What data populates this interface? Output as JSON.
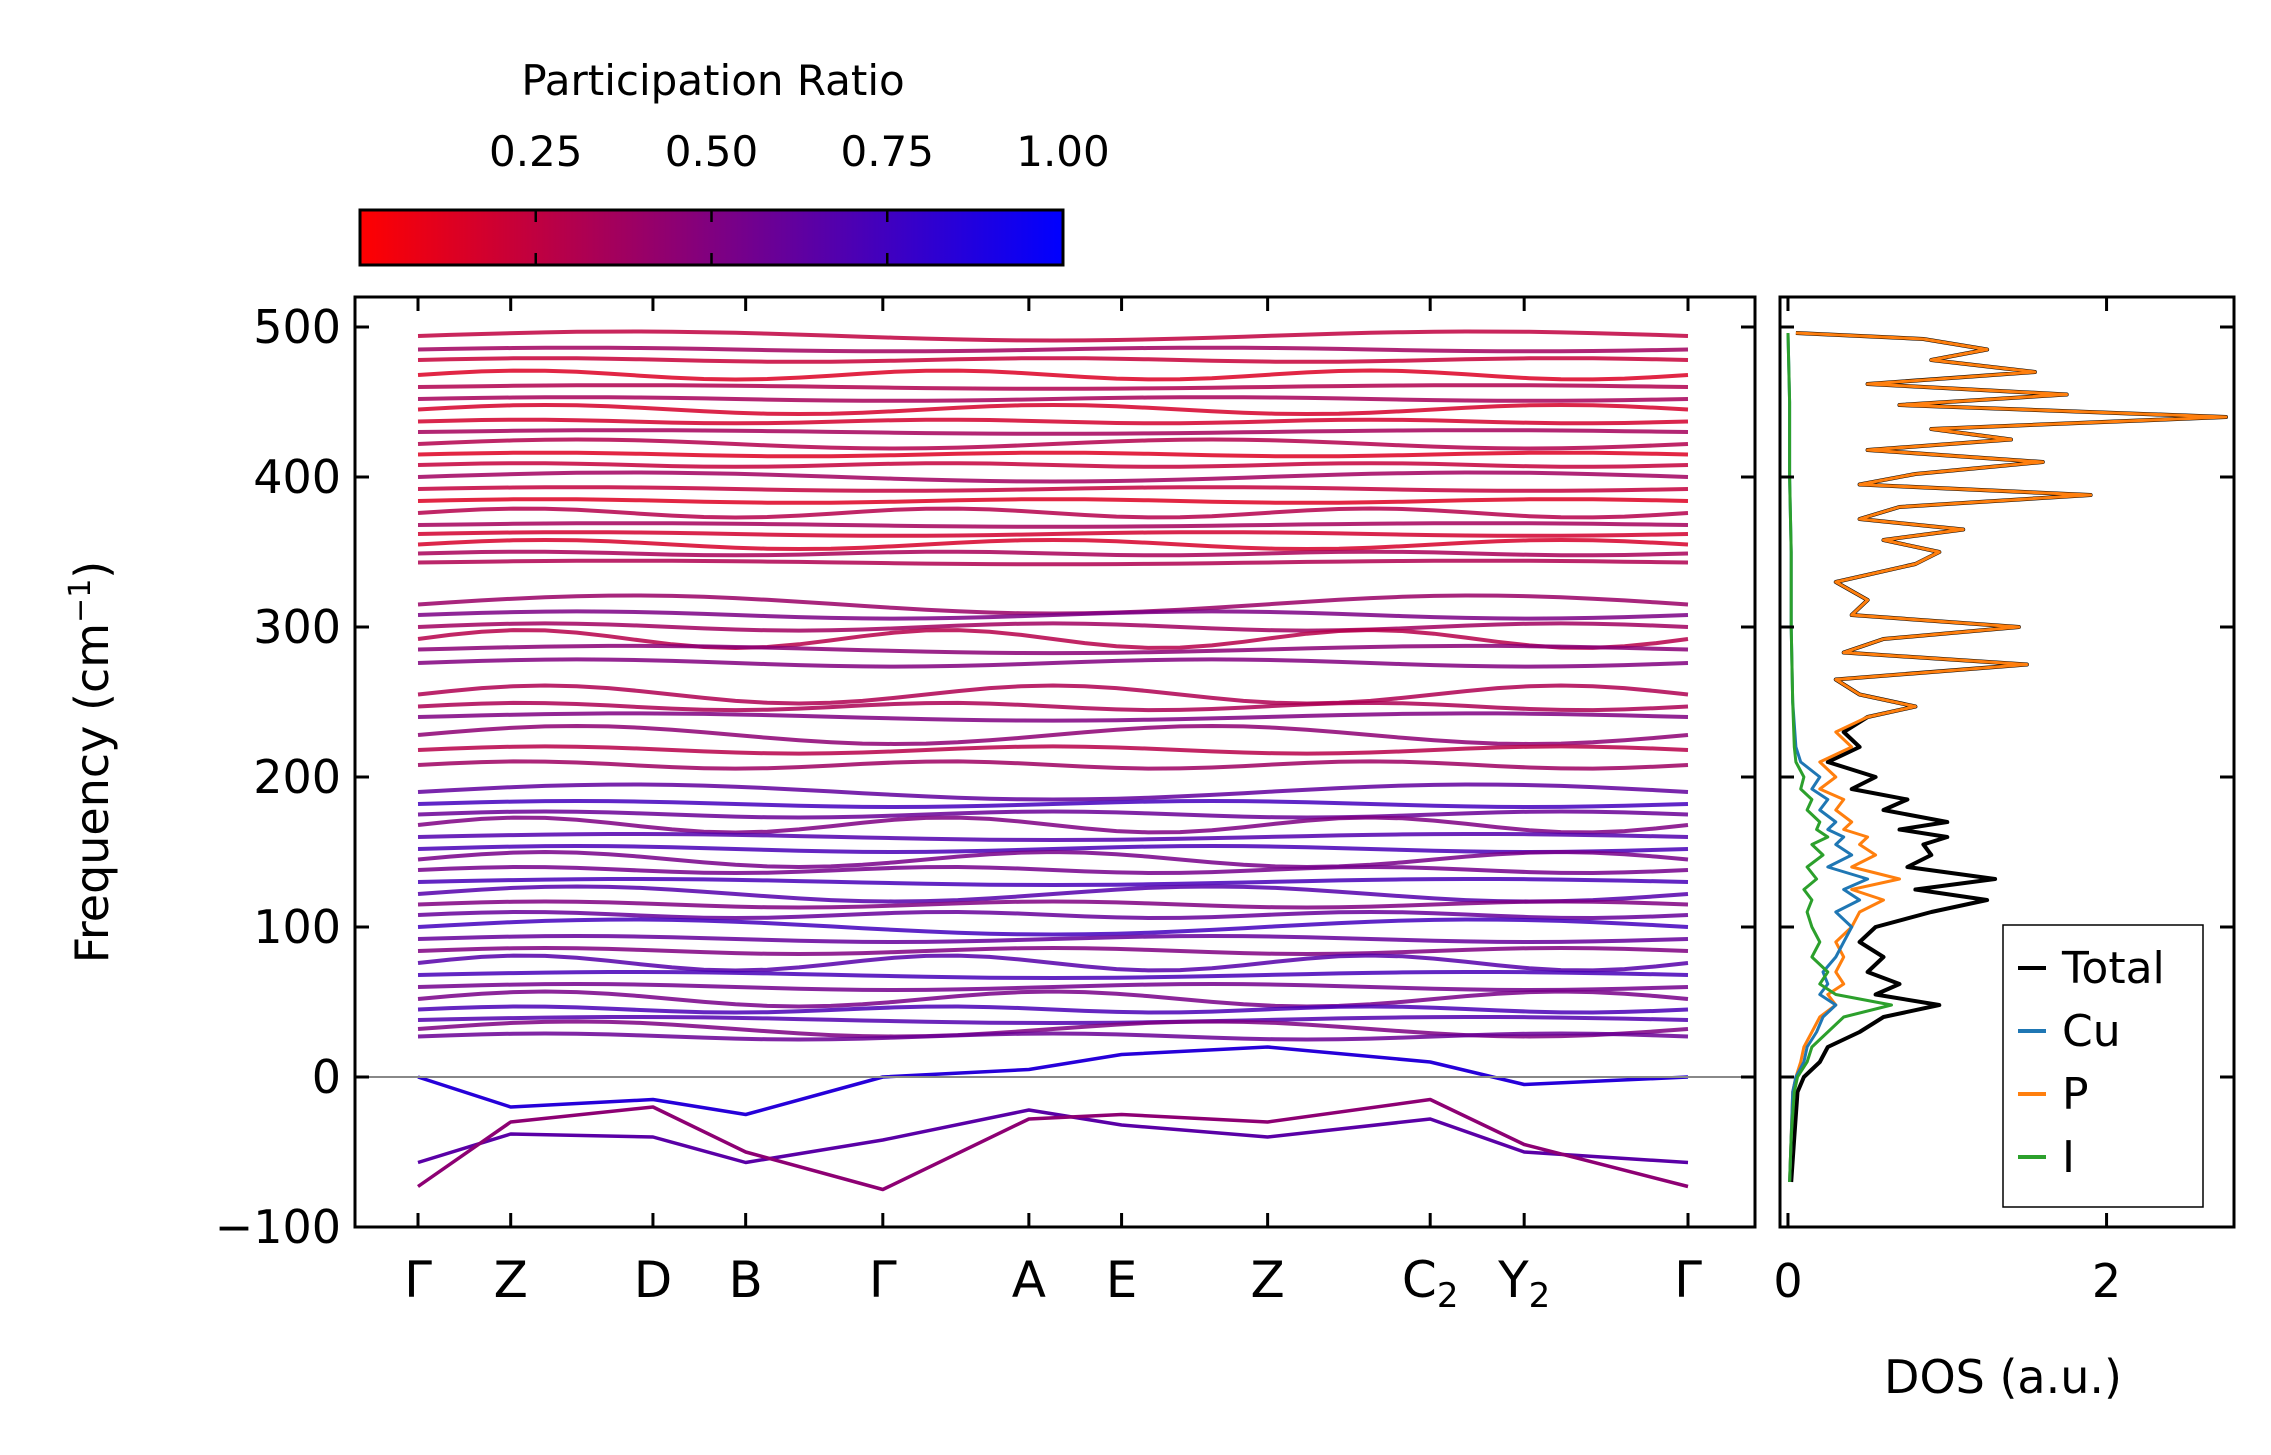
{
  "chart_data": [
    {
      "type": "line",
      "subtype": "phonon-band-structure",
      "ylabel": "Frequency (cm",
      "ylabel_sup": "−1",
      "ylabel_close": ")",
      "ylim": [
        -100,
        520
      ],
      "yticks": [
        500,
        400,
        300,
        200,
        100,
        0
      ],
      "ytick_labels": [
        "500",
        "400",
        "300",
        "200",
        "100",
        "0",
        "−100"
      ],
      "yticks_all": [
        500,
        400,
        300,
        200,
        100,
        0,
        -100
      ],
      "kpoint_positions": [
        0,
        0.073,
        0.185,
        0.258,
        0.366,
        0.481,
        0.554,
        0.669,
        0.797,
        0.871,
        1.0
      ],
      "kpath": [
        {
          "label": "Γ",
          "sub": ""
        },
        {
          "label": "Z",
          "sub": ""
        },
        {
          "label": "D",
          "sub": ""
        },
        {
          "label": "B",
          "sub": ""
        },
        {
          "label": "Γ",
          "sub": ""
        },
        {
          "label": "A",
          "sub": ""
        },
        {
          "label": "E",
          "sub": ""
        },
        {
          "label": "Z",
          "sub": ""
        },
        {
          "label": "C",
          "sub": "2"
        },
        {
          "label": "Y",
          "sub": "2"
        },
        {
          "label": "Γ",
          "sub": ""
        }
      ],
      "zero_line": 0,
      "flat_band_frequencies_high": [
        494,
        485,
        478,
        468,
        460,
        452,
        445,
        437,
        430,
        422,
        415,
        408,
        400,
        392,
        384,
        376,
        368,
        362,
        355,
        349,
        343
      ],
      "flat_band_frequencies_mid": [
        315,
        308,
        300,
        292,
        285,
        276,
        255,
        247,
        240,
        228,
        218,
        208
      ],
      "flat_band_frequencies_low": [
        190,
        182,
        175,
        168,
        160,
        152,
        145,
        138,
        130,
        122,
        115,
        108,
        100,
        92,
        84,
        76,
        68,
        60,
        52,
        45,
        38,
        32,
        27
      ],
      "acoustic_bands": [
        {
          "k": [
            0,
            0.073,
            0.185,
            0.258,
            0.366,
            0.481,
            0.554,
            0.669,
            0.797,
            0.871,
            1.0
          ],
          "f": [
            0,
            -20,
            -15,
            -25,
            0,
            5,
            15,
            20,
            10,
            -5,
            0
          ]
        },
        {
          "k": [
            0,
            0.073,
            0.185,
            0.258,
            0.366,
            0.481,
            0.554,
            0.669,
            0.797,
            0.871,
            1.0
          ],
          "f": [
            -57,
            -38,
            -40,
            -57,
            -42,
            -22,
            -32,
            -40,
            -28,
            -50,
            -57
          ]
        },
        {
          "k": [
            0,
            0.073,
            0.185,
            0.258,
            0.366,
            0.481,
            0.554,
            0.669,
            0.797,
            0.871,
            1.0
          ],
          "f": [
            -73,
            -30,
            -20,
            -50,
            -75,
            -28,
            -25,
            -30,
            -15,
            -45,
            -73
          ]
        }
      ],
      "colorbar": {
        "label": "Participation Ratio",
        "range": [
          0.0,
          1.0
        ],
        "ticks": [
          0.25,
          0.5,
          0.75,
          1.0
        ],
        "tick_labels": [
          "0.25",
          "0.50",
          "0.75",
          "1.00"
        ],
        "color_low": "#ff0000",
        "color_mid": "#800080",
        "color_high": "#0000ff"
      }
    },
    {
      "type": "line",
      "subtype": "density-of-states",
      "xlabel": "DOS (a.u.)",
      "xlim": [
        -0.05,
        2.8
      ],
      "xticks": [
        0,
        2
      ],
      "xtick_labels": [
        "0",
        "2"
      ],
      "ylim": [
        -100,
        520
      ],
      "legend_placement": "lower-right",
      "series": [
        {
          "name": "Total",
          "color": "#000000",
          "freq": [
            -70,
            -40,
            -10,
            0,
            10,
            20,
            30,
            40,
            48,
            55,
            62,
            70,
            80,
            90,
            100,
            110,
            118,
            125,
            132,
            140,
            148,
            155,
            160,
            165,
            170,
            178,
            185,
            192,
            200,
            210,
            220,
            230,
            240,
            247,
            255,
            265,
            275,
            283,
            292,
            300,
            308,
            318,
            330,
            342,
            350,
            358,
            365,
            372,
            380,
            388,
            395,
            402,
            410,
            418,
            425,
            432,
            440,
            448,
            455,
            462,
            470,
            478,
            485,
            492,
            496
          ],
          "dos": [
            0.02,
            0.04,
            0.06,
            0.1,
            0.2,
            0.25,
            0.45,
            0.6,
            0.95,
            0.55,
            0.7,
            0.5,
            0.6,
            0.45,
            0.55,
            0.9,
            1.25,
            0.8,
            1.3,
            0.75,
            0.9,
            0.85,
            1.0,
            0.7,
            1.0,
            0.6,
            0.75,
            0.4,
            0.55,
            0.25,
            0.45,
            0.35,
            0.5,
            0.8,
            0.45,
            0.3,
            1.5,
            0.35,
            0.6,
            1.45,
            0.4,
            0.5,
            0.3,
            0.8,
            0.95,
            0.6,
            1.1,
            0.45,
            0.7,
            1.9,
            0.45,
            0.8,
            1.6,
            0.5,
            1.4,
            0.9,
            2.75,
            0.7,
            1.75,
            0.5,
            1.55,
            0.9,
            1.25,
            0.85,
            0.05
          ]
        },
        {
          "name": "Cu",
          "color": "#1f77b4",
          "freq": [
            -70,
            -40,
            -10,
            0,
            10,
            20,
            30,
            40,
            48,
            55,
            62,
            70,
            80,
            90,
            100,
            110,
            118,
            125,
            132,
            140,
            148,
            155,
            160,
            165,
            170,
            178,
            185,
            192,
            200,
            210,
            220,
            250,
            300,
            350,
            400,
            450,
            496
          ],
          "dos": [
            0.01,
            0.02,
            0.03,
            0.05,
            0.1,
            0.12,
            0.18,
            0.22,
            0.3,
            0.2,
            0.25,
            0.22,
            0.3,
            0.35,
            0.4,
            0.3,
            0.45,
            0.35,
            0.5,
            0.25,
            0.4,
            0.3,
            0.35,
            0.25,
            0.3,
            0.2,
            0.25,
            0.15,
            0.2,
            0.08,
            0.05,
            0.03,
            0.02,
            0.02,
            0.01,
            0.01,
            0.0
          ]
        },
        {
          "name": "P",
          "color": "#ff7f0e",
          "freq": [
            -70,
            -40,
            -10,
            0,
            10,
            20,
            30,
            40,
            48,
            55,
            62,
            70,
            80,
            90,
            100,
            110,
            118,
            125,
            132,
            140,
            148,
            155,
            160,
            165,
            170,
            178,
            185,
            192,
            200,
            210,
            220,
            230,
            240,
            247,
            255,
            265,
            275,
            283,
            292,
            300,
            308,
            318,
            330,
            342,
            350,
            358,
            365,
            372,
            380,
            388,
            395,
            402,
            410,
            418,
            425,
            432,
            440,
            448,
            455,
            462,
            470,
            478,
            485,
            492,
            496
          ],
          "dos": [
            0.01,
            0.02,
            0.03,
            0.05,
            0.08,
            0.1,
            0.15,
            0.2,
            0.3,
            0.25,
            0.35,
            0.3,
            0.35,
            0.3,
            0.4,
            0.45,
            0.6,
            0.4,
            0.7,
            0.4,
            0.55,
            0.45,
            0.5,
            0.35,
            0.4,
            0.3,
            0.35,
            0.2,
            0.3,
            0.2,
            0.4,
            0.3,
            0.5,
            0.8,
            0.45,
            0.3,
            1.5,
            0.35,
            0.6,
            1.45,
            0.4,
            0.5,
            0.3,
            0.8,
            0.95,
            0.6,
            1.1,
            0.45,
            0.7,
            1.9,
            0.45,
            0.8,
            1.6,
            0.5,
            1.4,
            0.9,
            2.75,
            0.7,
            1.75,
            0.5,
            1.55,
            0.9,
            1.25,
            0.85,
            0.05
          ]
        },
        {
          "name": "I",
          "color": "#2ca02c",
          "freq": [
            -70,
            -40,
            -10,
            0,
            10,
            20,
            30,
            40,
            48,
            55,
            62,
            70,
            80,
            90,
            100,
            110,
            118,
            125,
            132,
            140,
            148,
            155,
            160,
            165,
            170,
            178,
            185,
            192,
            200,
            210,
            220,
            250,
            300,
            350,
            400,
            450,
            496
          ],
          "dos": [
            0.01,
            0.02,
            0.04,
            0.06,
            0.12,
            0.15,
            0.25,
            0.35,
            0.65,
            0.3,
            0.2,
            0.25,
            0.15,
            0.2,
            0.15,
            0.12,
            0.15,
            0.1,
            0.18,
            0.12,
            0.22,
            0.15,
            0.25,
            0.18,
            0.2,
            0.12,
            0.15,
            0.08,
            0.1,
            0.05,
            0.04,
            0.03,
            0.02,
            0.02,
            0.01,
            0.01,
            0.0
          ]
        }
      ]
    }
  ]
}
